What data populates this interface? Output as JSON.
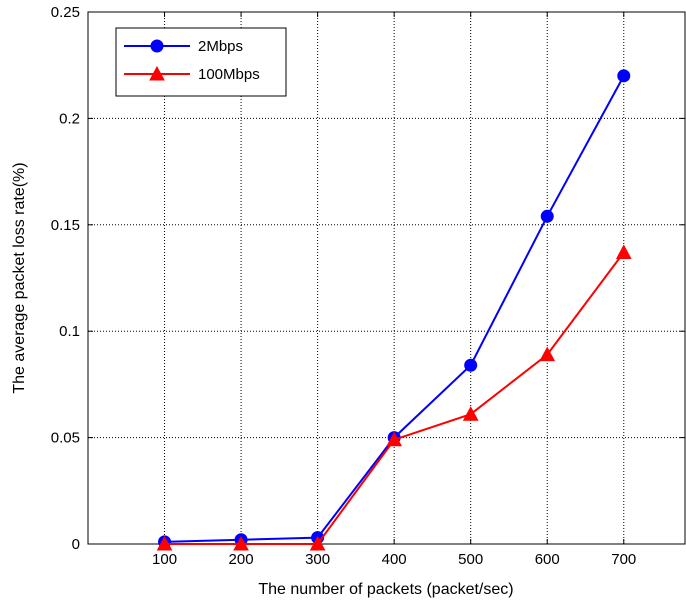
{
  "chart_data": {
    "type": "line",
    "title": "",
    "xlabel": "The number of packets (packet/sec)",
    "ylabel": "The average packet loss rate(%)",
    "x": [
      100,
      200,
      300,
      400,
      500,
      600,
      700
    ],
    "xlim": [
      0,
      780
    ],
    "xticks": [
      "100",
      "200",
      "300",
      "400",
      "500",
      "600",
      "700"
    ],
    "ylim": [
      0,
      0.25
    ],
    "yticks": [
      "0",
      "0.05",
      "0.1",
      "0.15",
      "0.2",
      "0.25"
    ],
    "grid": true,
    "legend_position": "top-left",
    "series": [
      {
        "name": "2Mbps",
        "color": "#0000ff",
        "marker": "circle",
        "values": [
          0.001,
          0.002,
          0.003,
          0.05,
          0.084,
          0.154,
          0.22
        ]
      },
      {
        "name": "100Mbps",
        "color": "#ff0000",
        "marker": "triangle",
        "values": [
          0.0,
          0.0,
          0.0,
          0.049,
          0.061,
          0.089,
          0.137
        ]
      }
    ]
  }
}
